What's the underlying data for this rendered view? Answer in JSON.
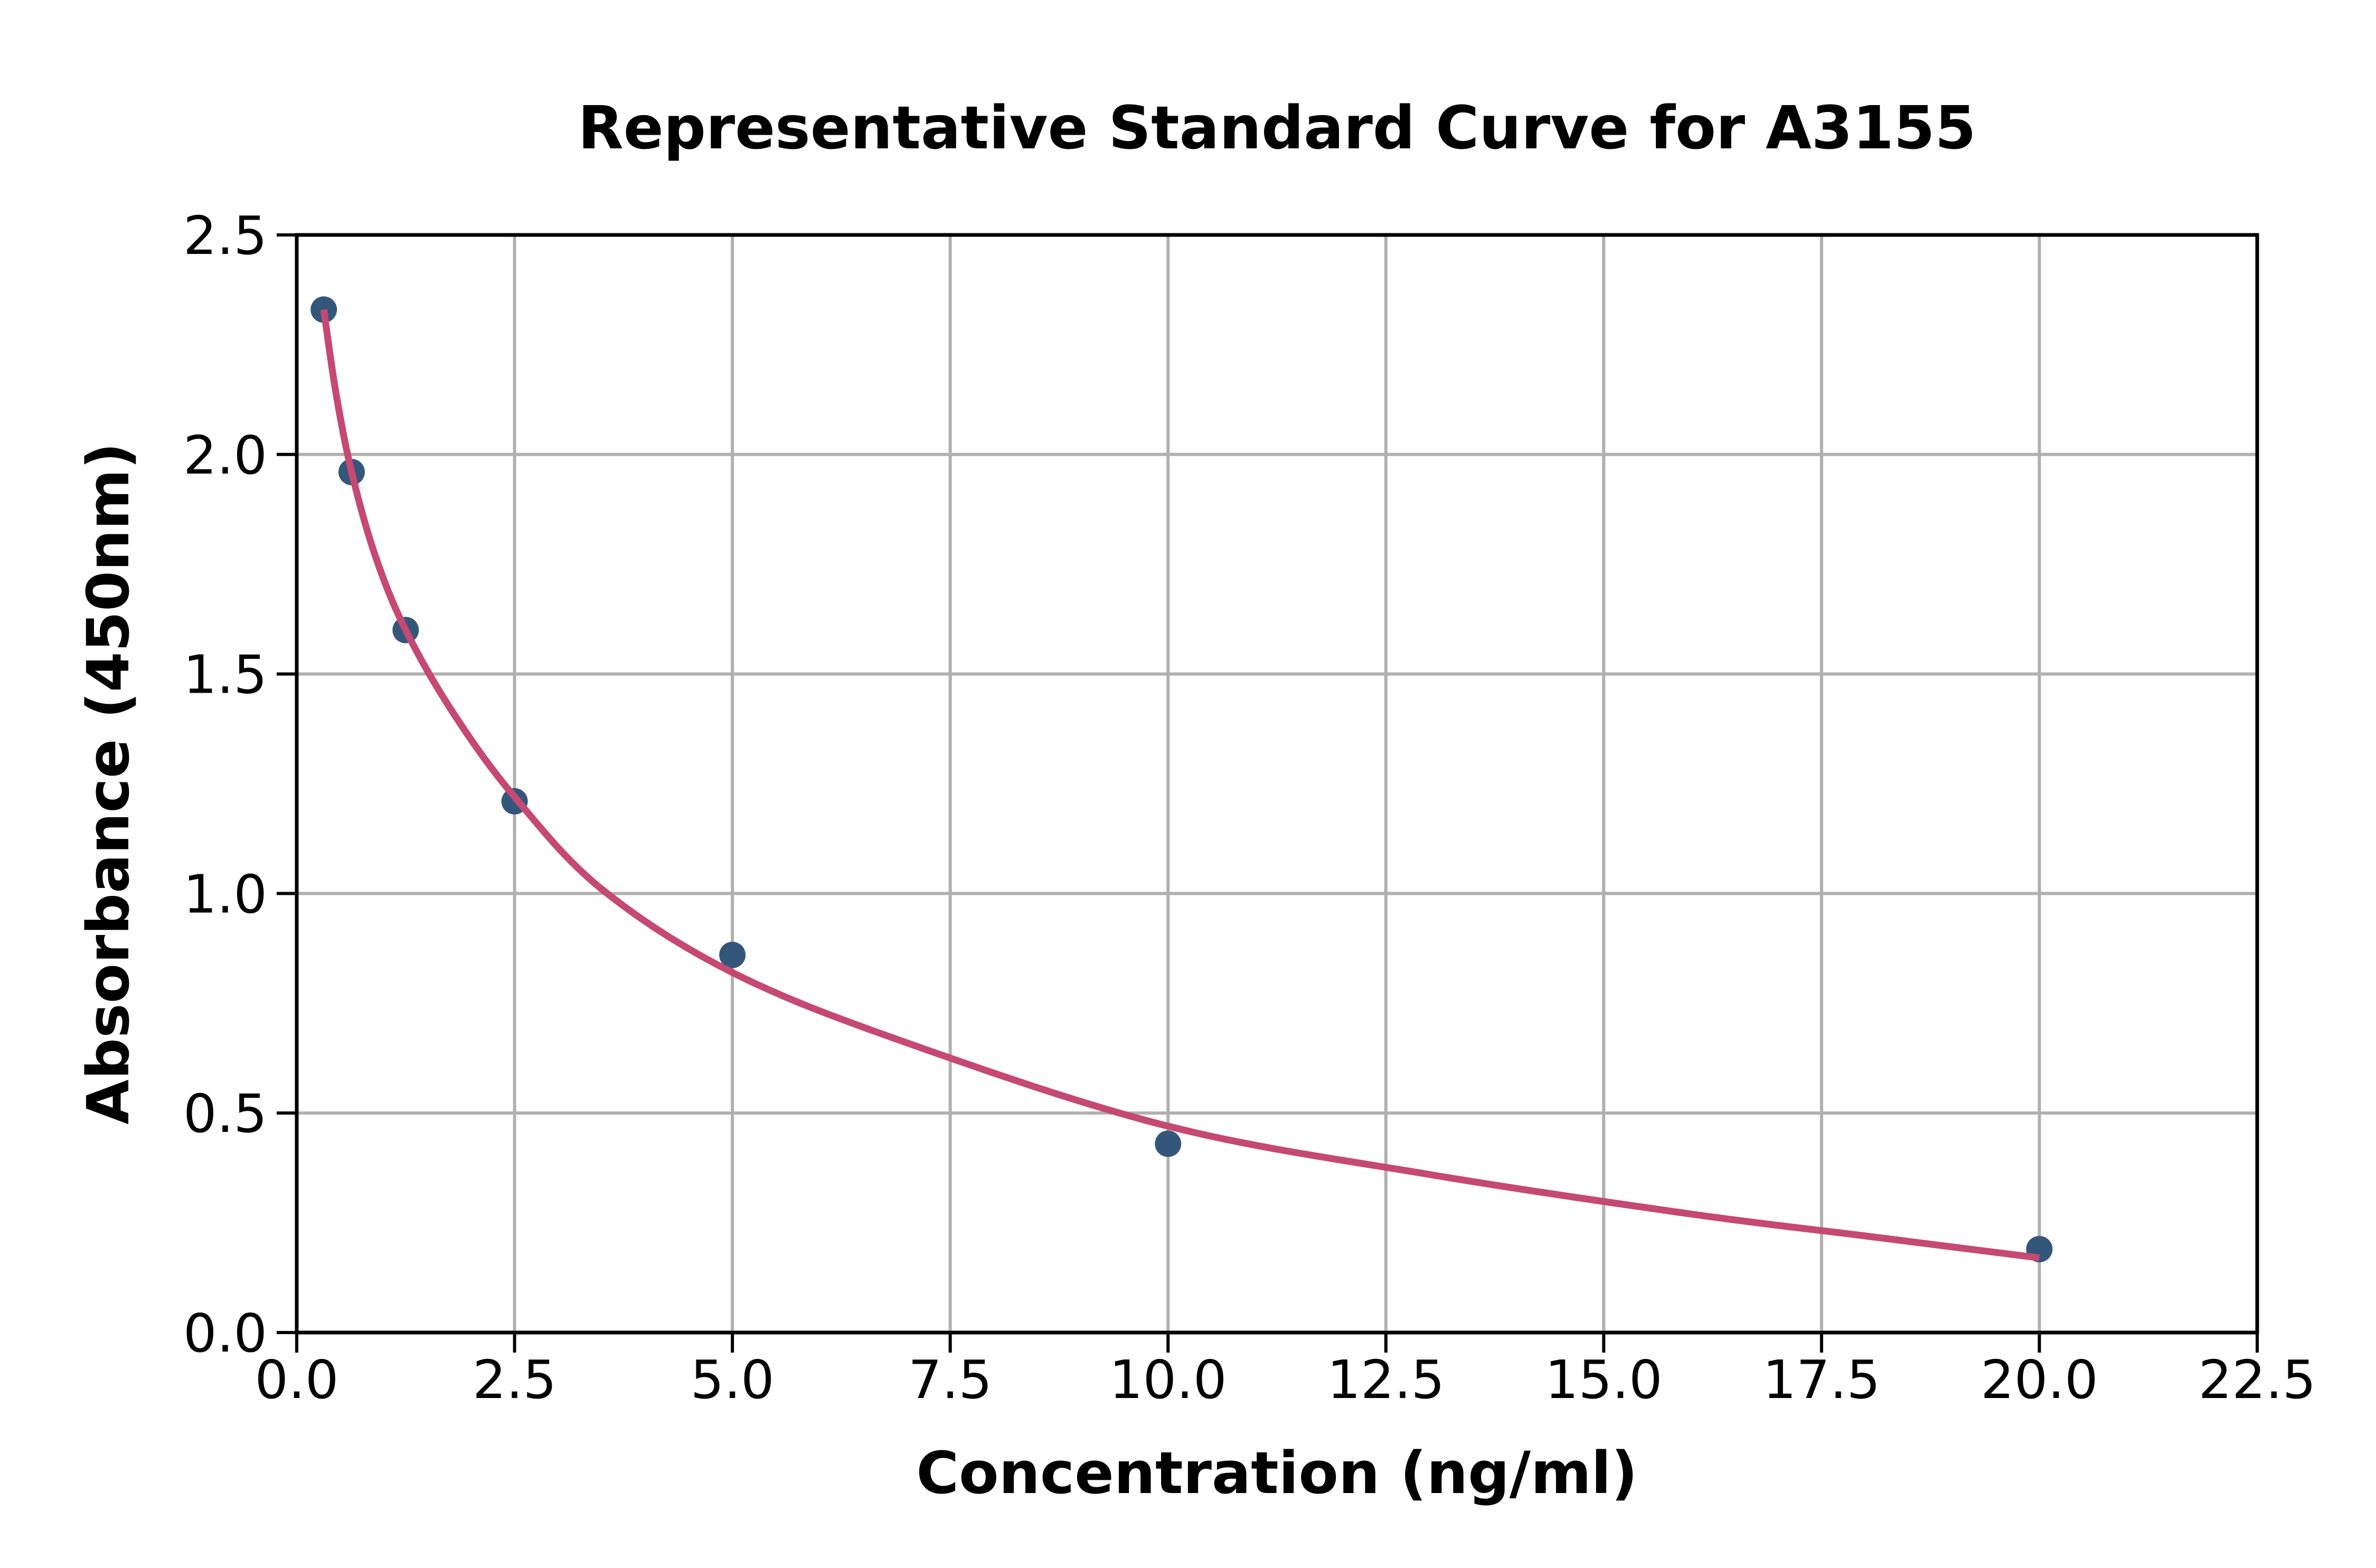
{
  "page": {
    "background": "#ffffff"
  },
  "chart_data": {
    "type": "scatter",
    "title": "Representative Standard Curve for A3155",
    "xlabel": "Concentration (ng/ml)",
    "ylabel": "Absorbance (450nm)",
    "xlim": [
      0,
      22.5
    ],
    "ylim": [
      0.0,
      2.5
    ],
    "grid": true,
    "grid_color": "#b0b0b0",
    "axis_color": "#000000",
    "background_color": "#ffffff",
    "legend_position": "none",
    "x_ticks": [
      0,
      2.5,
      5,
      7.5,
      10,
      12.5,
      15,
      17.5,
      20,
      22.5
    ],
    "x_tick_labels": [
      "0.0",
      "2.5",
      "5.0",
      "7.5",
      "10.0",
      "12.5",
      "15.0",
      "17.5",
      "20.0",
      "22.5"
    ],
    "y_ticks": [
      0,
      0.5,
      1,
      1.5,
      2,
      2.5
    ],
    "y_tick_labels": [
      "0.0",
      "0.5",
      "1.0",
      "1.5",
      "2.0",
      "2.5"
    ],
    "series": [
      {
        "name": "standard-points",
        "type": "scatter",
        "color": "#34567b",
        "x": [
          0.31,
          0.63,
          1.25,
          2.5,
          5,
          10,
          20
        ],
        "y": [
          2.33,
          1.96,
          1.6,
          1.21,
          0.86,
          0.43,
          0.19
        ]
      },
      {
        "name": "4pl-fit-curve",
        "type": "line",
        "color": "#c54972",
        "x": [
          0.31,
          0.45,
          0.63,
          0.9,
          1.25,
          1.8,
          2.5,
          3.5,
          5,
          7,
          10,
          13,
          16,
          18,
          20
        ],
        "y": [
          2.33,
          2.14,
          1.96,
          1.77,
          1.6,
          1.41,
          1.22,
          1.01,
          0.82,
          0.66,
          0.47,
          0.36,
          0.27,
          0.22,
          0.17
        ]
      }
    ]
  }
}
